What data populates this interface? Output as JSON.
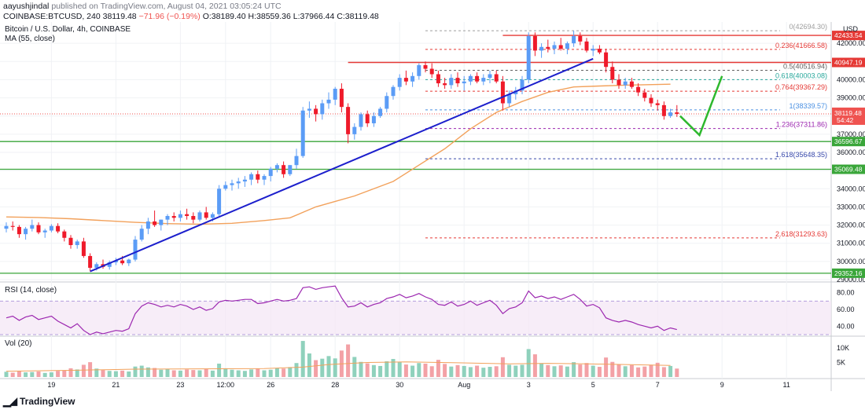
{
  "header": {
    "author": "aayushjindal",
    "published_text": "published on TradingView.com, August 04, 2021 03:05:24 UTC"
  },
  "ohlc": {
    "symbol": "COINBASE:BTCUSD, 240",
    "last": "38119.48",
    "change": "−71.96 (−0.19%)",
    "open": "O:38189.40",
    "high": "H:38559.36",
    "low": "L:37966.44",
    "close": "C:38119.48"
  },
  "footer": {
    "brand": "TradingView"
  },
  "colors": {
    "up": "#5b9cf6",
    "down": "#ef1a2a",
    "ma": "#f2a15b",
    "trend": "#1c1fcc",
    "support": "#3aa63a",
    "resistance": "#e53935",
    "rsi": "#9c27b0",
    "arrow": "#2eb82e",
    "vol_up": "#8fd1bc",
    "vol_down": "#f3a1a6"
  },
  "chart_data": [
    {
      "type": "candlestick",
      "title": "Bitcoin / U.S. Dollar, 4h, COINBASE",
      "indicator_label": "MA (55, close)",
      "currency": "USD",
      "ylim": [
        29000,
        43000
      ],
      "ylabels": [
        "42000.00",
        "41000.00",
        "40000.00",
        "39000.00",
        "38000.00",
        "37000.00",
        "36000.00",
        "35000.00",
        "34000.00",
        "33000.00",
        "32000.00",
        "31000.00",
        "30000.00",
        "29000.00"
      ],
      "yticks": [
        42000,
        41000,
        40000,
        39000,
        38000,
        37000,
        36000,
        35000,
        34000,
        33000,
        32000,
        31000,
        30000,
        29000
      ],
      "x_labels": [
        "19",
        "21",
        "23",
        "12:00",
        "26",
        "28",
        "30",
        "Aug",
        "3",
        "5",
        "7",
        "9",
        "11"
      ],
      "x_label_pos": [
        7,
        17,
        27,
        34,
        41,
        51,
        61,
        71,
        81,
        91,
        101,
        111,
        121
      ],
      "candles": [
        [
          31800,
          32150,
          31600,
          31950
        ],
        [
          31950,
          32200,
          31700,
          31900
        ],
        [
          31900,
          32000,
          31300,
          31500
        ],
        [
          31500,
          31900,
          31200,
          31800
        ],
        [
          31800,
          32300,
          31650,
          32000
        ],
        [
          32000,
          32150,
          31500,
          31600
        ],
        [
          31600,
          31800,
          31300,
          31700
        ],
        [
          31700,
          32050,
          31600,
          31950
        ],
        [
          31950,
          32100,
          31550,
          31650
        ],
        [
          31650,
          31750,
          31100,
          31300
        ],
        [
          31300,
          31450,
          30700,
          30900
        ],
        [
          30900,
          31200,
          30700,
          31100
        ],
        [
          31100,
          31300,
          30200,
          30300
        ],
        [
          30300,
          30450,
          29450,
          29650
        ],
        [
          29650,
          29950,
          29500,
          29850
        ],
        [
          29850,
          30100,
          29600,
          29700
        ],
        [
          29700,
          30050,
          29550,
          29950
        ],
        [
          29950,
          30200,
          29800,
          30050
        ],
        [
          30050,
          30300,
          29800,
          29900
        ],
        [
          29900,
          30150,
          29750,
          30100
        ],
        [
          30100,
          31400,
          30000,
          31200
        ],
        [
          31200,
          32000,
          31100,
          31800
        ],
        [
          31800,
          32400,
          31500,
          32200
        ],
        [
          32200,
          32800,
          31900,
          32000
        ],
        [
          32000,
          32300,
          31700,
          32300
        ],
        [
          32300,
          32600,
          32000,
          32500
        ],
        [
          32500,
          32700,
          32200,
          32400
        ],
        [
          32400,
          32800,
          32200,
          32600
        ],
        [
          32600,
          32900,
          32300,
          32500
        ],
        [
          32500,
          32700,
          32100,
          32300
        ],
        [
          32300,
          32800,
          32200,
          32700
        ],
        [
          32700,
          33000,
          32300,
          32400
        ],
        [
          32400,
          32700,
          32200,
          32600
        ],
        [
          32600,
          34200,
          32500,
          34000
        ],
        [
          34000,
          34400,
          33900,
          34200
        ],
        [
          34200,
          34500,
          33900,
          34300
        ],
        [
          34300,
          34600,
          34000,
          34400
        ],
        [
          34400,
          34700,
          34100,
          34500
        ],
        [
          34500,
          34900,
          34200,
          34800
        ],
        [
          34800,
          35000,
          34300,
          34500
        ],
        [
          34500,
          34800,
          34200,
          34700
        ],
        [
          34700,
          35200,
          34400,
          35100
        ],
        [
          35100,
          35400,
          34900,
          35300
        ],
        [
          35300,
          35500,
          34600,
          34800
        ],
        [
          34800,
          35300,
          34700,
          35300
        ],
        [
          35300,
          36200,
          35100,
          35800
        ],
        [
          35800,
          38500,
          35700,
          38300
        ],
        [
          38300,
          38800,
          37900,
          38400
        ],
        [
          38400,
          38600,
          37700,
          38100
        ],
        [
          38100,
          38900,
          37800,
          38700
        ],
        [
          38700,
          39300,
          38400,
          38900
        ],
        [
          38900,
          39600,
          38600,
          39500
        ],
        [
          39500,
          39800,
          38200,
          38500
        ],
        [
          38500,
          38700,
          36500,
          37000
        ],
        [
          37000,
          37600,
          36700,
          37400
        ],
        [
          37400,
          38200,
          37200,
          38100
        ],
        [
          38100,
          38300,
          37400,
          37600
        ],
        [
          37600,
          38200,
          37400,
          38000
        ],
        [
          38000,
          38500,
          37900,
          38400
        ],
        [
          38400,
          39300,
          38200,
          39100
        ],
        [
          39100,
          39700,
          38900,
          39600
        ],
        [
          39600,
          40300,
          39400,
          40100
        ],
        [
          40100,
          40500,
          39700,
          39900
        ],
        [
          39900,
          40400,
          39600,
          40200
        ],
        [
          40200,
          40900,
          40000,
          40800
        ],
        [
          40800,
          41000,
          40400,
          40600
        ],
        [
          40600,
          40900,
          40100,
          40300
        ],
        [
          40300,
          40500,
          39600,
          39800
        ],
        [
          39800,
          40100,
          39500,
          39700
        ],
        [
          39700,
          40300,
          39500,
          40100
        ],
        [
          40100,
          40400,
          39600,
          39800
        ],
        [
          39800,
          40200,
          39400,
          39900
        ],
        [
          39900,
          40300,
          39700,
          40200
        ],
        [
          40200,
          40400,
          39800,
          39900
        ],
        [
          39900,
          40300,
          39700,
          40100
        ],
        [
          40100,
          40500,
          39800,
          40300
        ],
        [
          40300,
          40500,
          39800,
          39900
        ],
        [
          39900,
          40200,
          38300,
          38700
        ],
        [
          38700,
          39400,
          38500,
          39200
        ],
        [
          39200,
          39600,
          38900,
          39400
        ],
        [
          39400,
          40200,
          39200,
          40000
        ],
        [
          40000,
          42600,
          39800,
          42400
        ],
        [
          42400,
          42600,
          41300,
          41600
        ],
        [
          41600,
          42000,
          41200,
          41800
        ],
        [
          41800,
          42200,
          41500,
          41700
        ],
        [
          41700,
          42100,
          41400,
          41900
        ],
        [
          41900,
          42300,
          41600,
          41700
        ],
        [
          41700,
          42100,
          41400,
          42000
        ],
        [
          42000,
          42694,
          41800,
          42400
        ],
        [
          42400,
          42600,
          41900,
          42100
        ],
        [
          42100,
          42300,
          41500,
          41600
        ],
        [
          41600,
          41900,
          41300,
          41700
        ],
        [
          41700,
          41900,
          41400,
          41500
        ],
        [
          41500,
          41700,
          40400,
          40700
        ],
        [
          40700,
          41000,
          39800,
          40000
        ],
        [
          40000,
          40300,
          39500,
          39700
        ],
        [
          39700,
          40100,
          39500,
          39900
        ],
        [
          39900,
          40100,
          39500,
          39600
        ],
        [
          39600,
          39800,
          39100,
          39300
        ],
        [
          39300,
          39500,
          38800,
          39000
        ],
        [
          39000,
          39200,
          38500,
          38700
        ],
        [
          38700,
          38900,
          38300,
          38600
        ],
        [
          38600,
          38800,
          37800,
          38000
        ],
        [
          38000,
          38400,
          37900,
          38200
        ],
        [
          38200,
          38600,
          37950,
          38119
        ]
      ],
      "moving_average_55": [
        [
          0,
          32450
        ],
        [
          5,
          32420
        ],
        [
          10,
          32350
        ],
        [
          15,
          32250
        ],
        [
          20,
          32150
        ],
        [
          25,
          32080
        ],
        [
          30,
          32050
        ],
        [
          35,
          32100
        ],
        [
          40,
          32250
        ],
        [
          44,
          32400
        ],
        [
          48,
          33000
        ],
        [
          54,
          33600
        ],
        [
          60,
          34400
        ],
        [
          64,
          35300
        ],
        [
          68,
          36200
        ],
        [
          72,
          37300
        ],
        [
          76,
          38200
        ],
        [
          80,
          38800
        ],
        [
          84,
          39300
        ],
        [
          88,
          39600
        ],
        [
          92,
          39650
        ],
        [
          96,
          39700
        ],
        [
          103,
          39750
        ]
      ],
      "trendline": {
        "from": [
          13,
          29450
        ],
        "to": [
          91,
          41150
        ]
      },
      "support_lines": [
        {
          "value": 36596.67,
          "label": "36596.67"
        },
        {
          "value": 35069.48,
          "label": "35069.48"
        },
        {
          "value": 29352.16,
          "label": "29352.16"
        }
      ],
      "resistance_lines": [
        {
          "value": 42433.54,
          "label": "42433.54",
          "from_index": 77
        },
        {
          "value": 40947.19,
          "label": "40947.19",
          "from_index": 53
        }
      ],
      "fibonacci": [
        {
          "level": "0",
          "value": 42694.3,
          "label": "0(42694.30)",
          "color": "#9e9e9e"
        },
        {
          "level": "0.236",
          "value": 41666.58,
          "label": "0.236(41666.58)",
          "color": "#e53935"
        },
        {
          "level": "0.5",
          "value": 40516.94,
          "label": "0.5(40516.94)",
          "color": "#616161"
        },
        {
          "level": "0.618",
          "value": 40003.08,
          "label": "0.618(40003.08)",
          "color": "#26a69a"
        },
        {
          "level": "0.764",
          "value": 39367.29,
          "label": "0.764(39367.29)",
          "color": "#e53935"
        },
        {
          "level": "1",
          "value": 38339.57,
          "label": "1(38339.57)",
          "color": "#4a90e2"
        },
        {
          "level": "1.236",
          "value": 37311.86,
          "label": "1.236(37311.86)",
          "color": "#9c27b0"
        },
        {
          "level": "1.618",
          "value": 35648.35,
          "label": "1.618(35648.35)",
          "color": "#3949ab"
        },
        {
          "level": "2.618",
          "value": 31293.63,
          "label": "2.618(31293.63)",
          "color": "#e53935"
        }
      ],
      "last_price_label": "38119.48",
      "countdown_label": "54:42",
      "projection_arrow": [
        [
          104.5,
          38000
        ],
        [
          107.5,
          36950
        ],
        [
          111,
          40200
        ]
      ]
    },
    {
      "type": "line",
      "title": "RSI (14, close)",
      "ylim": [
        30,
        90
      ],
      "ylabels": [
        "80.00",
        "60.00",
        "40.00"
      ],
      "yticks": [
        80,
        60,
        40
      ],
      "band": [
        30,
        70
      ],
      "values": [
        50,
        52,
        47,
        51,
        53,
        48,
        50,
        52,
        46,
        42,
        38,
        43,
        35,
        30,
        33,
        31,
        33,
        35,
        34,
        37,
        55,
        64,
        68,
        66,
        63,
        65,
        63,
        66,
        64,
        60,
        63,
        59,
        61,
        69,
        71,
        70,
        71,
        72,
        72,
        67,
        68,
        70,
        72,
        70,
        71,
        73,
        86,
        87,
        84,
        86,
        87,
        88,
        74,
        63,
        64,
        68,
        63,
        66,
        68,
        73,
        75,
        78,
        74,
        76,
        79,
        75,
        72,
        66,
        65,
        69,
        64,
        66,
        70,
        65,
        68,
        71,
        65,
        55,
        61,
        63,
        68,
        82,
        74,
        76,
        73,
        75,
        72,
        75,
        78,
        72,
        64,
        66,
        62,
        50,
        47,
        45,
        47,
        45,
        42,
        40,
        38,
        40,
        35,
        38,
        36
      ]
    },
    {
      "type": "bar",
      "title": "Vol (20)",
      "ylabels": [
        "10K",
        "5K"
      ],
      "yticks": [
        10000,
        5000
      ],
      "ylim": [
        0,
        13500
      ],
      "values": [
        1800,
        1500,
        2000,
        1600,
        1700,
        1900,
        1400,
        1600,
        2100,
        2300,
        3000,
        2600,
        4200,
        5100,
        2900,
        2400,
        2100,
        2000,
        2200,
        1900,
        3600,
        3900,
        3300,
        3100,
        2500,
        2700,
        2300,
        2200,
        2600,
        2400,
        2300,
        2700,
        2200,
        4600,
        3000,
        2500,
        2300,
        2100,
        2600,
        2900,
        2300,
        2500,
        3000,
        2900,
        3400,
        4800,
        12400,
        8100,
        5800,
        6300,
        7200,
        6400,
        9100,
        11200,
        6900,
        5200,
        4700,
        4100,
        3800,
        5400,
        6200,
        5100,
        4300,
        3900,
        4800,
        4600,
        3700,
        5900,
        4500,
        3600,
        4100,
        3800,
        3400,
        3900,
        3200,
        3500,
        3700,
        6800,
        4200,
        3900,
        4200,
        9600,
        7800,
        4700,
        4100,
        3700,
        4000,
        3600,
        5100,
        4300,
        4800,
        3900,
        3500,
        6700,
        5200,
        4400,
        3700,
        4100,
        3300,
        3600,
        4200,
        4900,
        3400,
        3800,
        2900
      ],
      "ma_values": [
        [
          0,
          2000
        ],
        [
          10,
          2300
        ],
        [
          20,
          2700
        ],
        [
          30,
          2800
        ],
        [
          40,
          2900
        ],
        [
          46,
          3400
        ],
        [
          50,
          4300
        ],
        [
          56,
          5000
        ],
        [
          62,
          5200
        ],
        [
          70,
          4900
        ],
        [
          78,
          4500
        ],
        [
          84,
          4700
        ],
        [
          90,
          4500
        ],
        [
          96,
          4300
        ],
        [
          103,
          4000
        ]
      ]
    }
  ]
}
